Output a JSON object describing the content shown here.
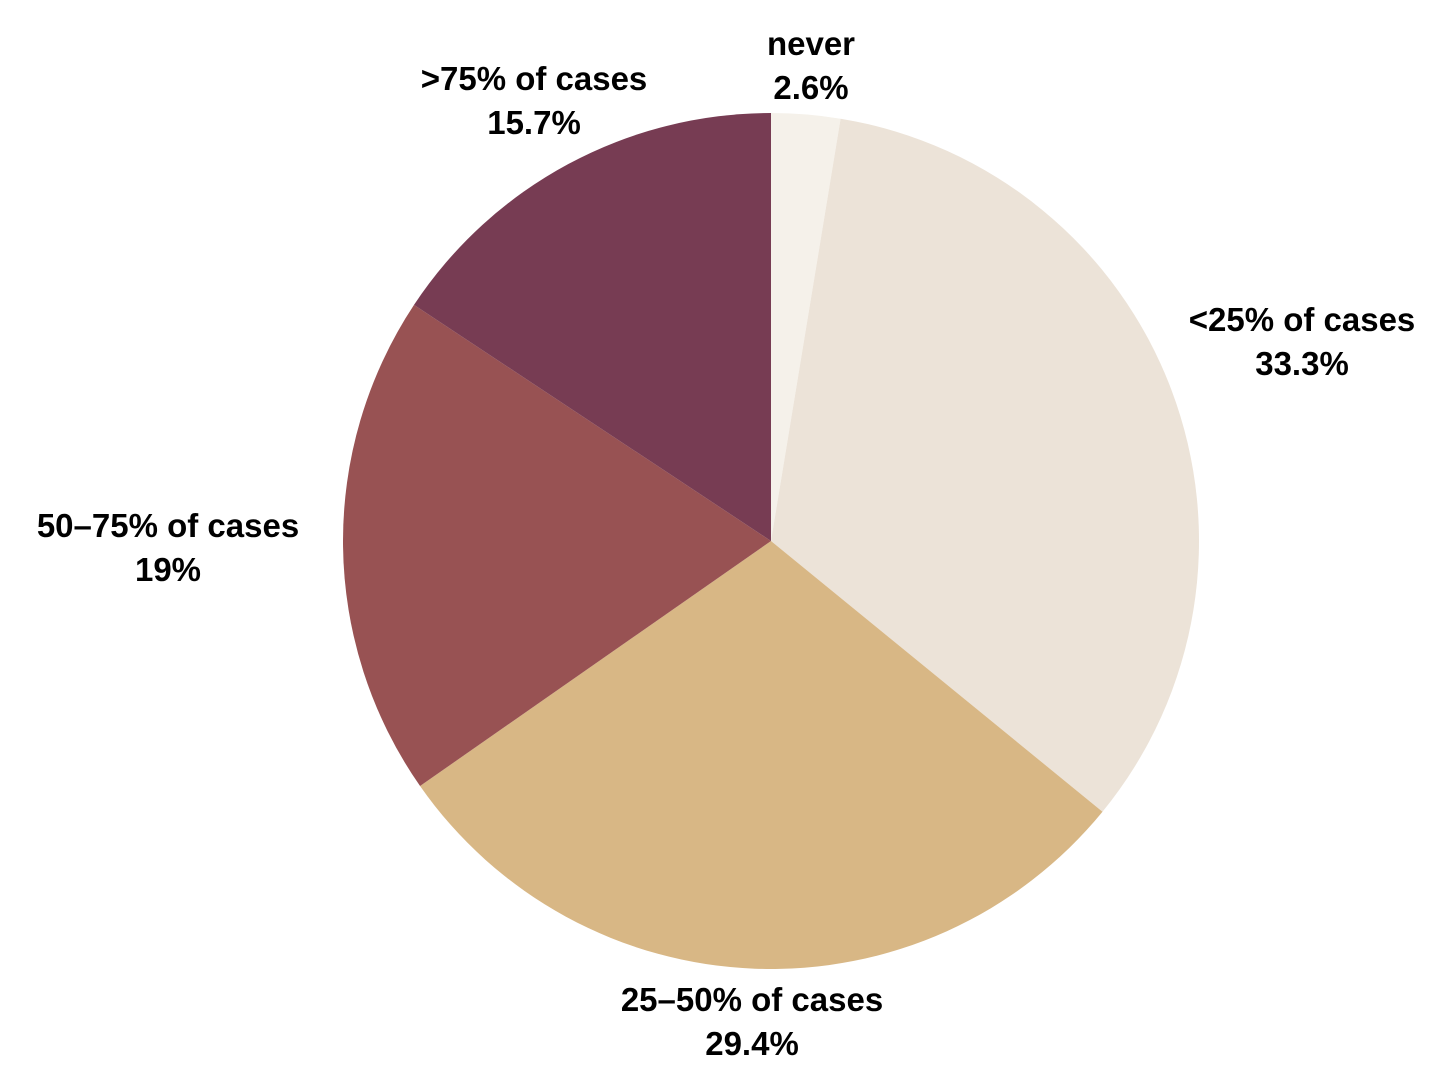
{
  "chart_data": {
    "type": "pie",
    "title": "",
    "start_angle_deg": 0,
    "direction": "clockwise",
    "slices": [
      {
        "label": "never",
        "value": 2.6,
        "value_label": "2.6%",
        "color": "#f5f1ea"
      },
      {
        "label": "<25% of cases",
        "value": 33.3,
        "value_label": "33.3%",
        "color": "#ece3d8"
      },
      {
        "label": "25–50% of cases",
        "value": 29.4,
        "value_label": "29.4%",
        "color": "#d8b785"
      },
      {
        "label": "50–75% of cases",
        "value": 19,
        "value_label": "19%",
        "color": "#985253"
      },
      {
        "label": ">75% of cases",
        "value": 15.7,
        "value_label": "15.7%",
        "color": "#773c53"
      }
    ]
  }
}
